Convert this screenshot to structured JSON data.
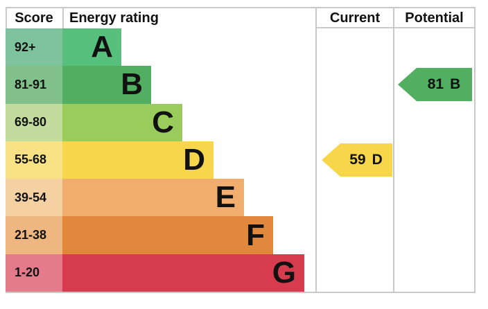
{
  "header": {
    "score": "Score",
    "energy_rating": "Energy rating",
    "current": "Current",
    "potential": "Potential"
  },
  "colors": {
    "border": "#c9c9c9",
    "text": "#111111"
  },
  "chart_data": {
    "type": "bar",
    "title": "EPC energy efficiency rating chart",
    "categories": [
      "A",
      "B",
      "C",
      "D",
      "E",
      "F",
      "G"
    ],
    "bands": [
      {
        "letter": "A",
        "score_range": "92+",
        "color": "#58c07d",
        "score_tint": "#7fc29e"
      },
      {
        "letter": "B",
        "score_range": "81-91",
        "color": "#52ae60",
        "score_tint": "#82c08b"
      },
      {
        "letter": "C",
        "score_range": "69-80",
        "color": "#99cc5a",
        "score_tint": "#c3dc9e"
      },
      {
        "letter": "D",
        "score_range": "55-68",
        "color": "#f8d64c",
        "score_tint": "#f9e285"
      },
      {
        "letter": "E",
        "score_range": "39-54",
        "color": "#f0ad6d",
        "score_tint": "#f5d0a3"
      },
      {
        "letter": "F",
        "score_range": "21-38",
        "color": "#e2883d",
        "score_tint": "#eeb781"
      },
      {
        "letter": "G",
        "score_range": "1-20",
        "color": "#d63c4d",
        "score_tint": "#e37b8a"
      }
    ],
    "markers": {
      "current": {
        "value": "59",
        "band": "D",
        "color": "#f8d64c"
      },
      "potential": {
        "value": "81",
        "band": "B",
        "color": "#52ae60"
      }
    }
  }
}
